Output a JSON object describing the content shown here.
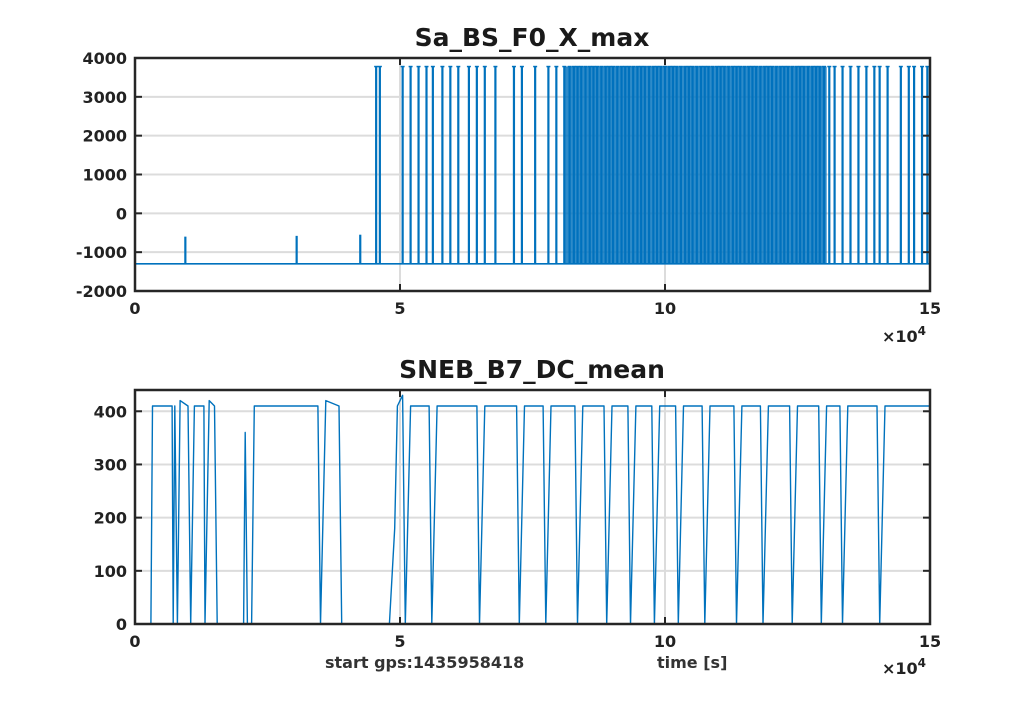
{
  "footer": {
    "start_gps": "start gps:1435958418",
    "xlabel": "time [s]"
  },
  "chart_data": [
    {
      "type": "line",
      "title": "Sa_BS_F0_X_max",
      "xlabel": "",
      "ylabel": "",
      "xlim": [
        0,
        15
      ],
      "ylim": [
        -2000,
        4000
      ],
      "x_ticks": [
        0,
        5,
        10,
        15
      ],
      "x_tick_labels": [
        "0",
        "5",
        "10",
        "15"
      ],
      "y_ticks": [
        -2000,
        -1000,
        0,
        1000,
        2000,
        3000,
        4000
      ],
      "y_tick_labels": [
        "-2000",
        "-1000",
        "0",
        "1000",
        "2000",
        "3000",
        "4000"
      ],
      "x_exponent_label": "×10",
      "x_exponent_power": "4",
      "grid": true,
      "color": "#0072bd",
      "baseline": -1300,
      "spikes": [
        {
          "x": 0.95,
          "y": -600
        },
        {
          "x": 3.05,
          "y": -580
        },
        {
          "x": 4.25,
          "y": -550
        },
        {
          "x": 4.55,
          "y": 3780
        },
        {
          "x": 4.62,
          "y": 3780
        },
        {
          "x": 5.05,
          "y": 3780
        },
        {
          "x": 5.2,
          "y": 3780
        },
        {
          "x": 5.35,
          "y": 3780
        },
        {
          "x": 5.5,
          "y": 3780
        },
        {
          "x": 5.62,
          "y": 3780
        },
        {
          "x": 5.8,
          "y": 3780
        },
        {
          "x": 5.95,
          "y": 3780
        },
        {
          "x": 6.1,
          "y": 3780
        },
        {
          "x": 6.3,
          "y": 3780
        },
        {
          "x": 6.45,
          "y": 3780
        },
        {
          "x": 6.6,
          "y": 3780
        },
        {
          "x": 6.8,
          "y": 3780
        },
        {
          "x": 7.15,
          "y": 3780
        },
        {
          "x": 7.3,
          "y": 3780
        },
        {
          "x": 7.55,
          "y": 3780
        },
        {
          "x": 7.8,
          "y": 3780
        },
        {
          "x": 7.95,
          "y": 3780
        },
        {
          "x": 8.1,
          "y": 3780
        },
        {
          "x": 8.2,
          "y": 3780
        },
        {
          "x": 8.28,
          "y": 3780
        },
        {
          "x": 8.35,
          "y": 3780
        },
        {
          "x": 8.42,
          "y": 3780
        },
        {
          "x": 8.5,
          "y": 3780
        },
        {
          "x": 8.58,
          "y": 3780
        },
        {
          "x": 8.65,
          "y": 3780
        },
        {
          "x": 8.72,
          "y": 3780
        },
        {
          "x": 8.8,
          "y": 3780
        },
        {
          "x": 8.88,
          "y": 3780
        },
        {
          "x": 8.95,
          "y": 3780
        },
        {
          "x": 9.02,
          "y": 3780
        },
        {
          "x": 9.1,
          "y": 3780
        },
        {
          "x": 9.18,
          "y": 3780
        },
        {
          "x": 9.25,
          "y": 3780
        },
        {
          "x": 9.32,
          "y": 3780
        },
        {
          "x": 9.4,
          "y": 3780
        },
        {
          "x": 9.48,
          "y": 3780
        },
        {
          "x": 9.55,
          "y": 3780
        },
        {
          "x": 9.62,
          "y": 3780
        },
        {
          "x": 9.7,
          "y": 3780
        },
        {
          "x": 9.78,
          "y": 3780
        },
        {
          "x": 9.85,
          "y": 3780
        },
        {
          "x": 9.92,
          "y": 3780
        },
        {
          "x": 10.0,
          "y": 3780
        },
        {
          "x": 10.08,
          "y": 3780
        },
        {
          "x": 10.15,
          "y": 3780
        },
        {
          "x": 10.22,
          "y": 3780
        },
        {
          "x": 10.3,
          "y": 3780
        },
        {
          "x": 10.38,
          "y": 3780
        },
        {
          "x": 10.45,
          "y": 3780
        },
        {
          "x": 10.52,
          "y": 3780
        },
        {
          "x": 10.6,
          "y": 3780
        },
        {
          "x": 10.68,
          "y": 3780
        },
        {
          "x": 10.75,
          "y": 3780
        },
        {
          "x": 10.82,
          "y": 3780
        },
        {
          "x": 10.9,
          "y": 3780
        },
        {
          "x": 10.98,
          "y": 3780
        },
        {
          "x": 11.05,
          "y": 3780
        },
        {
          "x": 11.12,
          "y": 3780
        },
        {
          "x": 11.2,
          "y": 3780
        },
        {
          "x": 11.28,
          "y": 3780
        },
        {
          "x": 11.35,
          "y": 3780
        },
        {
          "x": 11.42,
          "y": 3780
        },
        {
          "x": 11.5,
          "y": 3780
        },
        {
          "x": 11.58,
          "y": 3780
        },
        {
          "x": 11.65,
          "y": 3780
        },
        {
          "x": 11.72,
          "y": 3780
        },
        {
          "x": 11.8,
          "y": 3780
        },
        {
          "x": 11.88,
          "y": 3780
        },
        {
          "x": 11.95,
          "y": 3780
        },
        {
          "x": 12.02,
          "y": 3780
        },
        {
          "x": 12.1,
          "y": 3780
        },
        {
          "x": 12.18,
          "y": 3780
        },
        {
          "x": 12.25,
          "y": 3780
        },
        {
          "x": 12.32,
          "y": 3780
        },
        {
          "x": 12.4,
          "y": 3780
        },
        {
          "x": 12.48,
          "y": 3780
        },
        {
          "x": 12.55,
          "y": 3780
        },
        {
          "x": 12.62,
          "y": 3780
        },
        {
          "x": 12.7,
          "y": 3780
        },
        {
          "x": 12.78,
          "y": 3780
        },
        {
          "x": 12.85,
          "y": 3780
        },
        {
          "x": 12.92,
          "y": 3780
        },
        {
          "x": 13.0,
          "y": 3780
        },
        {
          "x": 13.1,
          "y": 3780
        },
        {
          "x": 13.2,
          "y": 3780
        },
        {
          "x": 13.35,
          "y": 3780
        },
        {
          "x": 13.5,
          "y": 3780
        },
        {
          "x": 13.65,
          "y": 3780
        },
        {
          "x": 13.8,
          "y": 3780
        },
        {
          "x": 13.95,
          "y": 3780
        },
        {
          "x": 14.05,
          "y": 3780
        },
        {
          "x": 14.2,
          "y": 3780
        },
        {
          "x": 14.45,
          "y": 3780
        },
        {
          "x": 14.6,
          "y": 3780
        },
        {
          "x": 14.7,
          "y": 3780
        },
        {
          "x": 14.85,
          "y": 3780
        },
        {
          "x": 14.95,
          "y": 3780
        }
      ]
    },
    {
      "type": "line",
      "title": "SNEB_B7_DC_mean",
      "xlabel": "time [s]",
      "ylabel": "",
      "xlim": [
        0,
        15
      ],
      "ylim": [
        0,
        440
      ],
      "x_ticks": [
        0,
        5,
        10,
        15
      ],
      "x_tick_labels": [
        "0",
        "5",
        "10",
        "15"
      ],
      "y_ticks": [
        0,
        100,
        200,
        300,
        400
      ],
      "y_tick_labels": [
        "0",
        "100",
        "200",
        "300",
        "400"
      ],
      "x_exponent_label": "×10",
      "x_exponent_power": "4",
      "grid": true,
      "color": "#0072bd",
      "segments": [
        [
          0.0,
          0
        ],
        [
          0.3,
          0
        ],
        [
          0.33,
          410
        ],
        [
          0.7,
          410
        ],
        [
          0.72,
          0
        ],
        [
          0.75,
          410
        ],
        [
          0.8,
          0
        ],
        [
          0.85,
          420
        ],
        [
          1.0,
          410
        ],
        [
          1.05,
          0
        ],
        [
          1.12,
          410
        ],
        [
          1.3,
          410
        ],
        [
          1.32,
          0
        ],
        [
          1.4,
          420
        ],
        [
          1.5,
          410
        ],
        [
          1.55,
          0
        ],
        [
          2.05,
          0
        ],
        [
          2.08,
          360
        ],
        [
          2.12,
          0
        ],
        [
          2.2,
          0
        ],
        [
          2.25,
          410
        ],
        [
          3.45,
          410
        ],
        [
          3.5,
          0
        ],
        [
          3.6,
          420
        ],
        [
          3.85,
          410
        ],
        [
          3.9,
          0
        ],
        [
          4.8,
          0
        ],
        [
          4.9,
          180
        ],
        [
          4.95,
          410
        ],
        [
          5.05,
          430
        ],
        [
          5.1,
          0
        ],
        [
          5.2,
          410
        ],
        [
          5.55,
          410
        ],
        [
          5.6,
          0
        ],
        [
          5.7,
          410
        ],
        [
          6.45,
          410
        ],
        [
          6.5,
          0
        ],
        [
          6.6,
          410
        ],
        [
          7.2,
          410
        ],
        [
          7.25,
          0
        ],
        [
          7.35,
          410
        ],
        [
          7.7,
          410
        ],
        [
          7.75,
          0
        ],
        [
          7.85,
          410
        ],
        [
          8.3,
          410
        ],
        [
          8.35,
          0
        ],
        [
          8.45,
          410
        ],
        [
          8.85,
          410
        ],
        [
          8.9,
          0
        ],
        [
          9.0,
          410
        ],
        [
          9.3,
          410
        ],
        [
          9.35,
          0
        ],
        [
          9.45,
          410
        ],
        [
          9.75,
          410
        ],
        [
          9.8,
          0
        ],
        [
          9.9,
          410
        ],
        [
          10.2,
          410
        ],
        [
          10.25,
          0
        ],
        [
          10.35,
          410
        ],
        [
          10.7,
          410
        ],
        [
          10.75,
          0
        ],
        [
          10.85,
          410
        ],
        [
          11.3,
          410
        ],
        [
          11.35,
          0
        ],
        [
          11.45,
          410
        ],
        [
          11.8,
          410
        ],
        [
          11.85,
          0
        ],
        [
          11.95,
          410
        ],
        [
          12.35,
          410
        ],
        [
          12.4,
          0
        ],
        [
          12.5,
          410
        ],
        [
          12.9,
          410
        ],
        [
          12.95,
          0
        ],
        [
          13.05,
          410
        ],
        [
          13.3,
          410
        ],
        [
          13.35,
          0
        ],
        [
          13.45,
          410
        ],
        [
          14.0,
          410
        ],
        [
          14.05,
          0
        ],
        [
          14.15,
          410
        ],
        [
          15.0,
          410
        ]
      ]
    }
  ]
}
